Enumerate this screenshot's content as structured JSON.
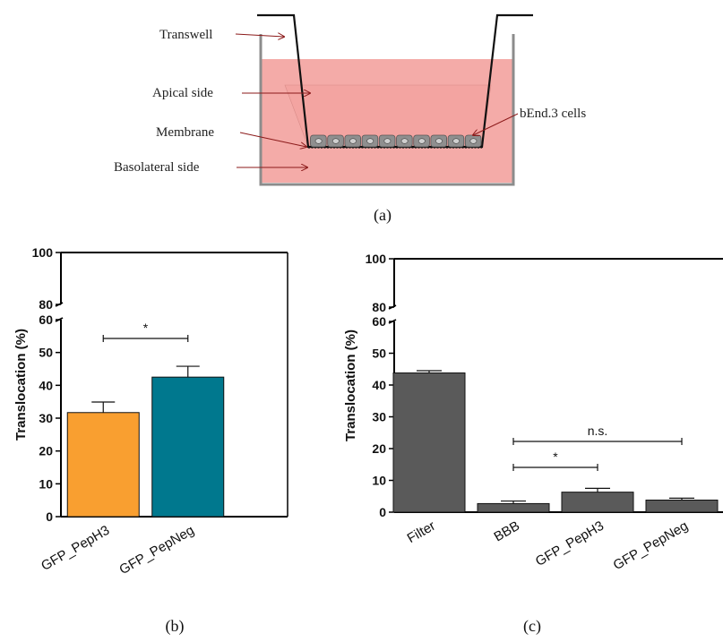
{
  "panel_a": {
    "labels": {
      "transwell": "Transwell",
      "apical": "Apical side",
      "membrane": "Membrane",
      "basolateral": "Basolateral side",
      "cells": "bEnd.3 cells"
    },
    "cell_count": 10,
    "caption": "(a)",
    "colors": {
      "medium": "#f4aba8",
      "wall": "#8c8c8c",
      "cell": "#8f8f8f",
      "arrow": "#8b1a1a"
    }
  },
  "chart_data": [
    {
      "id": "b",
      "type": "bar",
      "ylabel": "Translocation (%)",
      "categories": [
        "GFP_PepH3",
        "GFP_PepNeg"
      ],
      "values": [
        31.7,
        42.5
      ],
      "errors": [
        3.2,
        3.3
      ],
      "colors": [
        "#f99f30",
        "#00788e"
      ],
      "ylim": [
        0,
        100
      ],
      "axis_break": [
        60,
        80
      ],
      "yticks_lower": [
        "0",
        "10",
        "20",
        "30",
        "40",
        "50",
        "60"
      ],
      "yticks_upper": [
        "80",
        "100"
      ],
      "significance": [
        {
          "from": 0,
          "to": 1,
          "label": "*"
        }
      ],
      "caption": "(b)"
    },
    {
      "id": "c",
      "type": "bar",
      "ylabel": "Translocation (%)",
      "categories": [
        "Filter",
        "BBB",
        "GFP_PepH3",
        "GFP_PepNeg"
      ],
      "values": [
        43.8,
        2.7,
        6.3,
        3.8
      ],
      "errors": [
        0.7,
        0.8,
        1.2,
        0.6
      ],
      "colors": [
        "#5a5a5a",
        "#5a5a5a",
        "#5a5a5a",
        "#5a5a5a"
      ],
      "ylim": [
        0,
        100
      ],
      "axis_break": [
        60,
        80
      ],
      "yticks_lower": [
        "0",
        "10",
        "20",
        "30",
        "40",
        "50",
        "60"
      ],
      "yticks_upper": [
        "80",
        "100"
      ],
      "significance": [
        {
          "from": 1,
          "to": 3,
          "label": "n.s."
        },
        {
          "from": 1,
          "to": 2,
          "label": "*"
        }
      ],
      "caption": "(c)"
    }
  ]
}
